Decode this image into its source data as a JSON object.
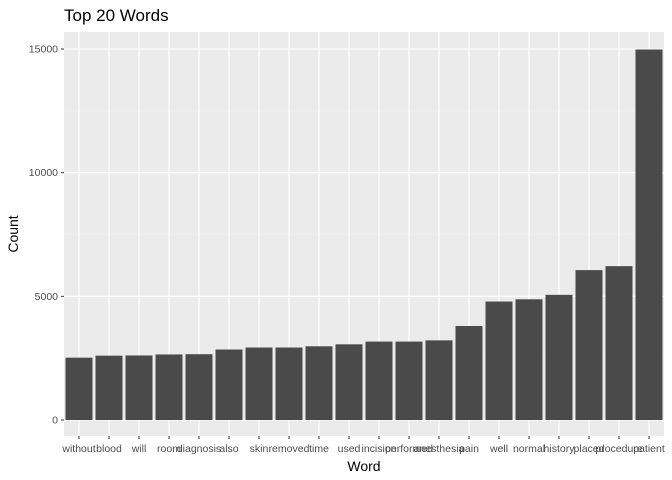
{
  "chart_data": {
    "type": "bar",
    "title": "Top 20 Words",
    "xlabel": "Word",
    "ylabel": "Count",
    "categories": [
      "without",
      "blood",
      "will",
      "room",
      "diagnosis",
      "also",
      "skin",
      "removed",
      "time",
      "used",
      "incision",
      "performed",
      "anesthesia",
      "pain",
      "well",
      "normal",
      "history",
      "placed",
      "procedure",
      "patient"
    ],
    "values": [
      2520,
      2600,
      2610,
      2650,
      2660,
      2850,
      2930,
      2930,
      2980,
      3060,
      3170,
      3170,
      3220,
      3800,
      4790,
      4880,
      5060,
      6060,
      6220,
      14980
    ],
    "ylim": [
      0,
      15000
    ],
    "yticks": [
      0,
      5000,
      10000,
      15000
    ],
    "grid": true,
    "colors": {
      "bar": "#4a4a4a",
      "panel": "#ebebeb"
    }
  }
}
